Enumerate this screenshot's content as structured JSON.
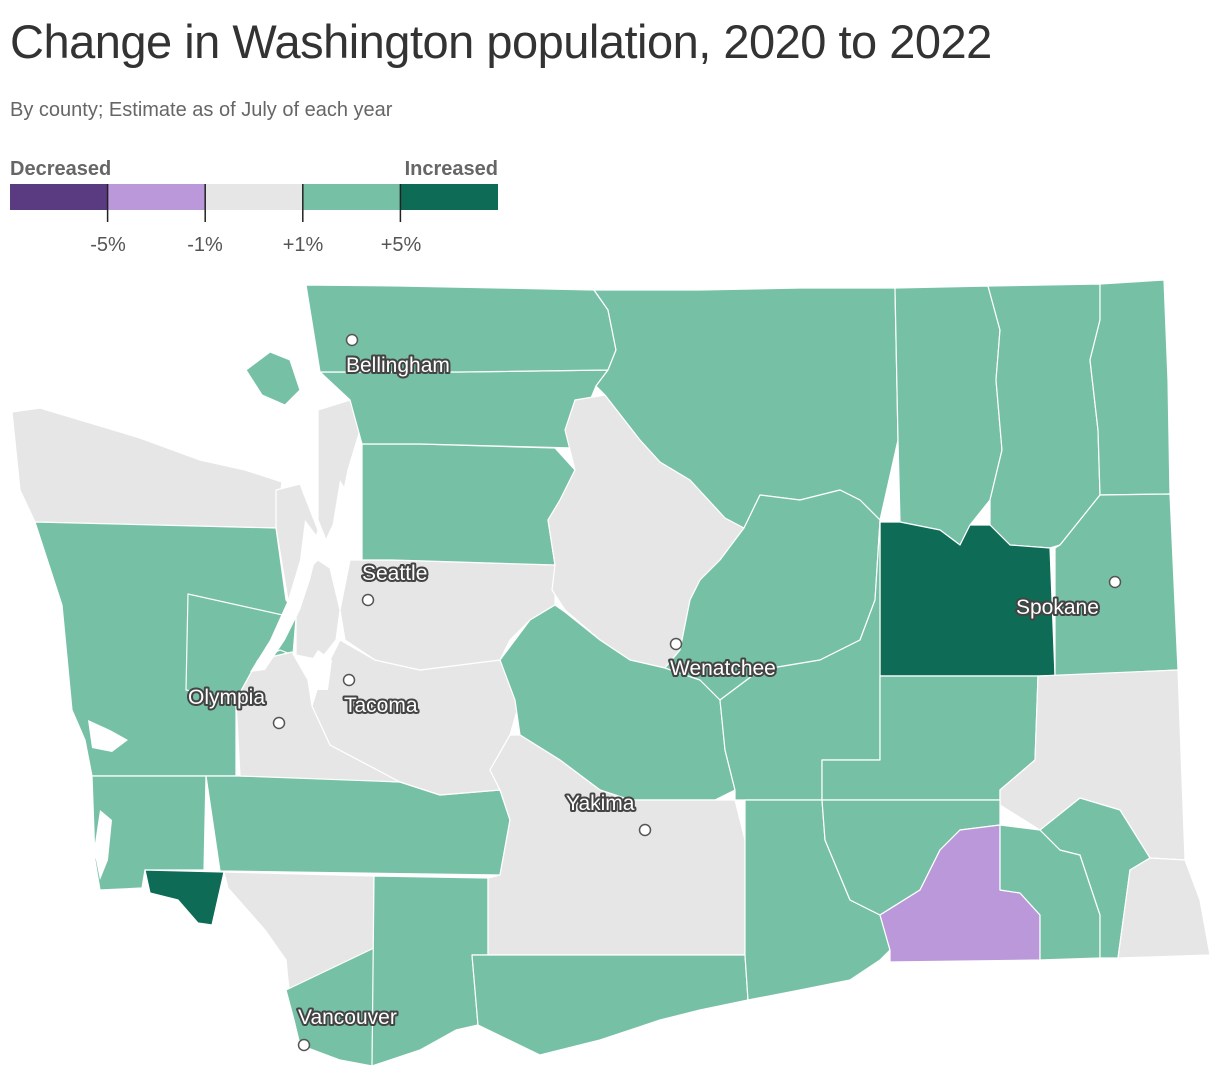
{
  "title": "Change in Washington population, 2020 to 2022",
  "subtitle": "By county; Estimate as of July of each year",
  "legend": {
    "low_label": "Decreased",
    "high_label": "Increased",
    "bins": [
      {
        "color": "#5a3a80"
      },
      {
        "color": "#bb98da"
      },
      {
        "color": "#e6e6e6"
      },
      {
        "color": "#76c1a6"
      },
      {
        "color": "#0d6b56"
      }
    ],
    "ticks": [
      "-5%",
      "-1%",
      "+1%",
      "+5%"
    ]
  },
  "colors": {
    "strong_increase": "#0d6b56",
    "increase": "#76c1a6",
    "no_change": "#e6e6e6",
    "decrease": "#bb98da",
    "strong_decrease": "#5a3a80",
    "border": "#ffffff"
  },
  "cities": [
    {
      "name": "Bellingham"
    },
    {
      "name": "Seattle"
    },
    {
      "name": "Spokane"
    },
    {
      "name": "Wenatchee"
    },
    {
      "name": "Olympia"
    },
    {
      "name": "Tacoma"
    },
    {
      "name": "Yakima"
    },
    {
      "name": "Vancouver"
    }
  ]
}
